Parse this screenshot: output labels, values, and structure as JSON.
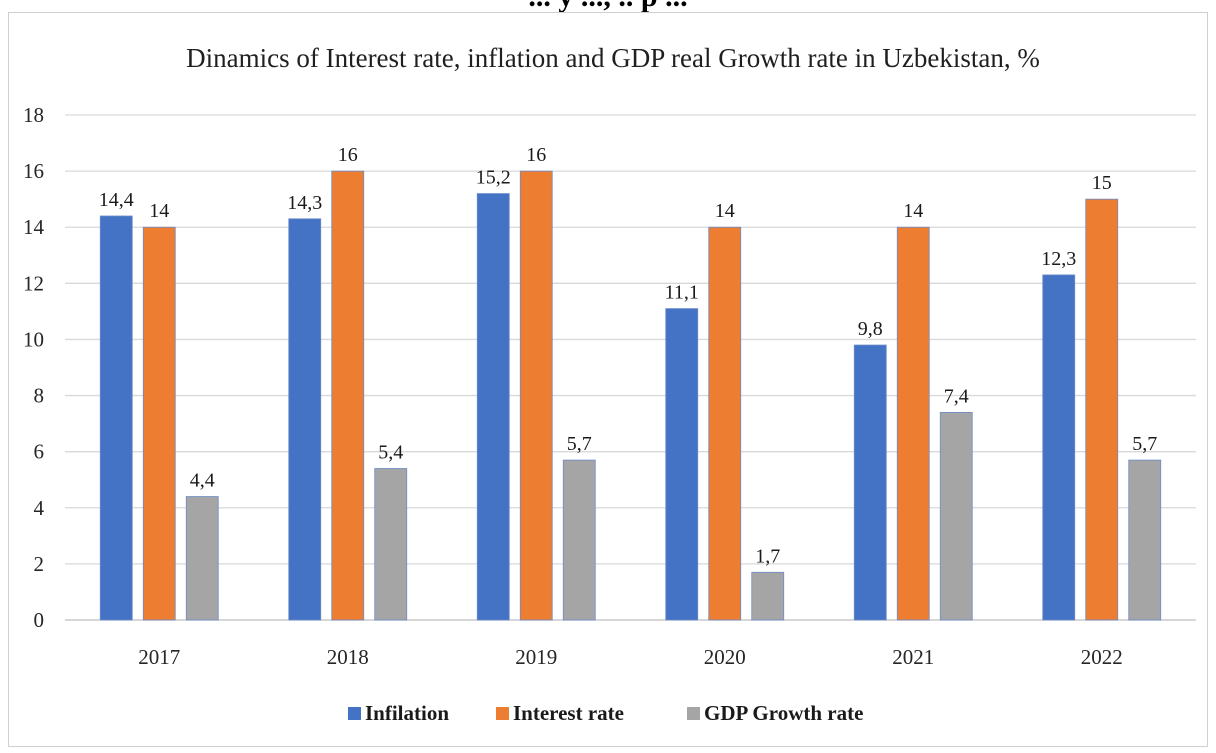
{
  "header_fragment": "... y ..., .. p ...",
  "chart_data": {
    "type": "bar",
    "title": "Dinamics of Interest rate, inflation and GDP real Growth rate in Uzbekistan, %",
    "categories": [
      "2017",
      "2018",
      "2019",
      "2020",
      "2021",
      "2022"
    ],
    "series": [
      {
        "name": "Infilation",
        "color": "#4472c4",
        "values": [
          14.4,
          14.3,
          15.2,
          11.1,
          9.8,
          12.3
        ],
        "labels": [
          "14,4",
          "14,3",
          "15,2",
          "11,1",
          "9,8",
          "12,3"
        ]
      },
      {
        "name": "Interest rate",
        "color": "#ed7d31",
        "values": [
          14,
          16,
          16,
          14,
          14,
          15
        ],
        "labels": [
          "14",
          "16",
          "16",
          "14",
          "14",
          "15"
        ]
      },
      {
        "name": "GDP Growth rate",
        "color": "#a5a5a5",
        "values": [
          4.4,
          5.4,
          5.7,
          1.7,
          7.4,
          5.7
        ],
        "labels": [
          "4,4",
          "5,4",
          "5,7",
          "1,7",
          "7,4",
          "5,7"
        ]
      }
    ],
    "ylim": [
      0,
      18
    ],
    "yticks": [
      "0",
      "2",
      "4",
      "6",
      "8",
      "10",
      "12",
      "14",
      "16",
      "18"
    ],
    "grid": true,
    "legend_position": "bottom"
  }
}
